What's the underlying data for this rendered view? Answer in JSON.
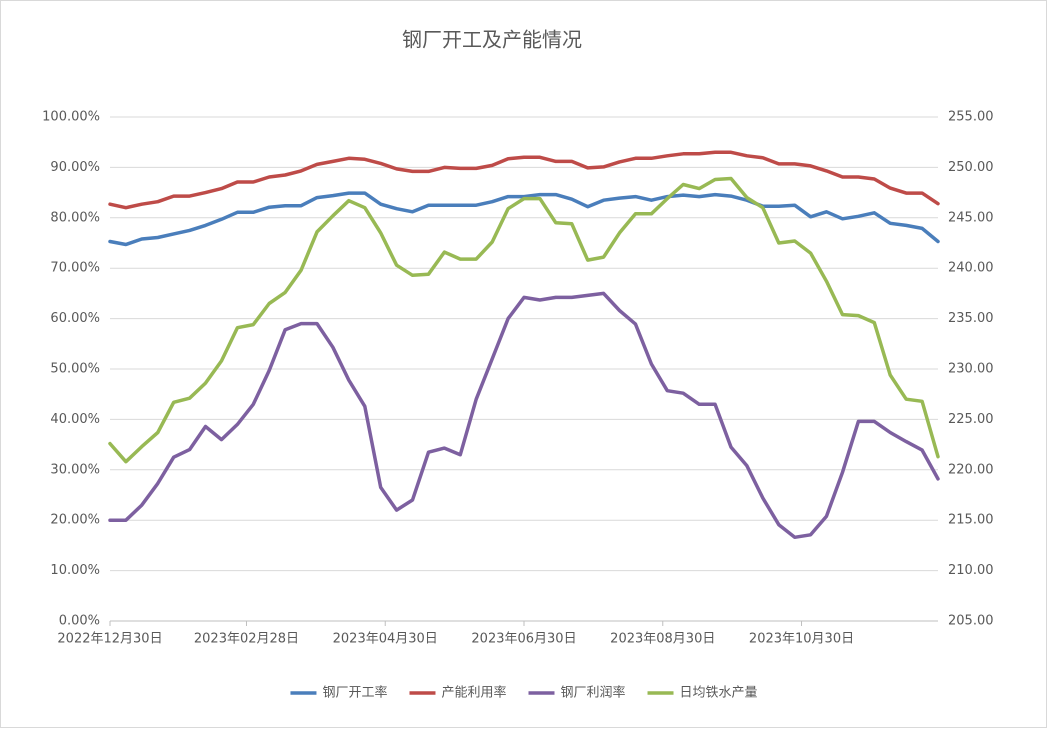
{
  "chart_data": {
    "type": "line",
    "title": "钢厂开工及产能情况",
    "x": [
      "2022-12-30",
      "2023-01-06",
      "2023-01-13",
      "2023-01-20",
      "2023-01-27",
      "2023-02-03",
      "2023-02-10",
      "2023-02-17",
      "2023-02-24",
      "2023-03-03",
      "2023-03-10",
      "2023-03-17",
      "2023-03-24",
      "2023-03-31",
      "2023-04-07",
      "2023-04-14",
      "2023-04-21",
      "2023-04-28",
      "2023-05-05",
      "2023-05-12",
      "2023-05-19",
      "2023-05-26",
      "2023-06-02",
      "2023-06-09",
      "2023-06-16",
      "2023-06-23",
      "2023-06-30",
      "2023-07-07",
      "2023-07-14",
      "2023-07-21",
      "2023-07-28",
      "2023-08-04",
      "2023-08-11",
      "2023-08-18",
      "2023-08-25",
      "2023-09-01",
      "2023-09-08",
      "2023-09-15",
      "2023-09-22",
      "2023-09-29",
      "2023-10-06",
      "2023-10-13",
      "2023-10-20",
      "2023-10-27",
      "2023-11-03",
      "2023-11-10",
      "2023-11-17",
      "2023-11-24",
      "2023-12-01",
      "2023-12-08",
      "2023-12-15",
      "2023-12-22",
      "2023-12-29"
    ],
    "xlim": [
      "2022-12-30",
      "2023-12-29"
    ],
    "xticks": [
      {
        "value": "2022-12-30",
        "label": "2022年12月30日"
      },
      {
        "value": "2023-02-28",
        "label": "2023年02月28日"
      },
      {
        "value": "2023-04-30",
        "label": "2023年04月30日"
      },
      {
        "value": "2023-06-30",
        "label": "2023年06月30日"
      },
      {
        "value": "2023-08-30",
        "label": "2023年08月30日"
      },
      {
        "value": "2023-10-30",
        "label": "2023年10月30日"
      }
    ],
    "ylim": [
      0,
      100
    ],
    "yticks": [
      {
        "value": 0,
        "label": "0.00%"
      },
      {
        "value": 10,
        "label": "10.00%"
      },
      {
        "value": 20,
        "label": "20.00%"
      },
      {
        "value": 30,
        "label": "30.00%"
      },
      {
        "value": 40,
        "label": "40.00%"
      },
      {
        "value": 50,
        "label": "50.00%"
      },
      {
        "value": 60,
        "label": "60.00%"
      },
      {
        "value": 70,
        "label": "70.00%"
      },
      {
        "value": 80,
        "label": "80.00%"
      },
      {
        "value": 90,
        "label": "90.00%"
      },
      {
        "value": 100,
        "label": "100.00%"
      }
    ],
    "y2lim": [
      205,
      255
    ],
    "y2ticks": [
      {
        "value": 205,
        "label": "205.00"
      },
      {
        "value": 210,
        "label": "210.00"
      },
      {
        "value": 215,
        "label": "215.00"
      },
      {
        "value": 220,
        "label": "220.00"
      },
      {
        "value": 225,
        "label": "225.00"
      },
      {
        "value": 230,
        "label": "230.00"
      },
      {
        "value": 235,
        "label": "235.00"
      },
      {
        "value": 240,
        "label": "240.00"
      },
      {
        "value": 245,
        "label": "245.00"
      },
      {
        "value": 250,
        "label": "250.00"
      },
      {
        "value": 255,
        "label": "255.00"
      }
    ],
    "grid": true,
    "legend": "bottom",
    "series": [
      {
        "name": "钢厂开工率",
        "color": "#4a7ebb",
        "values": [
          75.3,
          74.7,
          75.8,
          76.1,
          76.8,
          77.5,
          78.5,
          79.7,
          81.1,
          81.1,
          82.1,
          82.4,
          82.4,
          84.0,
          84.4,
          84.9,
          84.9,
          82.7,
          81.8,
          81.2,
          82.5,
          82.5,
          82.5,
          82.5,
          83.2,
          84.2,
          84.2,
          84.6,
          84.6,
          83.7,
          82.2,
          83.5,
          83.9,
          84.2,
          83.5,
          84.2,
          84.5,
          84.2,
          84.6,
          84.3,
          83.5,
          82.3,
          82.3,
          82.5,
          80.2,
          81.2,
          79.8,
          80.3,
          81.0,
          78.9,
          78.5,
          77.9,
          75.3
        ]
      },
      {
        "name": "产能利用率",
        "color": "#be4b48",
        "values": [
          82.7,
          82.0,
          82.7,
          83.2,
          84.3,
          84.3,
          85.0,
          85.8,
          87.1,
          87.1,
          88.1,
          88.5,
          89.3,
          90.6,
          91.2,
          91.8,
          91.6,
          90.8,
          89.7,
          89.2,
          89.2,
          90.0,
          89.8,
          89.8,
          90.4,
          91.7,
          92.0,
          92.0,
          91.2,
          91.2,
          89.9,
          90.1,
          91.1,
          91.8,
          91.8,
          92.3,
          92.7,
          92.7,
          93.0,
          93.0,
          92.3,
          91.9,
          90.7,
          90.7,
          90.3,
          89.3,
          88.1,
          88.1,
          87.7,
          85.9,
          84.9,
          84.9,
          82.8
        ]
      },
      {
        "name": "钢厂利润率",
        "color": "#7d60a0",
        "values": [
          20.0,
          20.0,
          23.0,
          27.3,
          32.5,
          34.0,
          38.6,
          36.0,
          39.0,
          43.0,
          49.7,
          57.8,
          59.0,
          59.0,
          54.3,
          47.8,
          42.6,
          26.5,
          22.0,
          24.0,
          33.5,
          34.3,
          33.0,
          44.0,
          52.0,
          60.0,
          64.2,
          63.7,
          64.2,
          64.2,
          64.6,
          65.0,
          61.6,
          58.9,
          51.0,
          45.7,
          45.2,
          43.0,
          43.0,
          34.5,
          30.8,
          24.4,
          19.1,
          16.6,
          17.1,
          20.8,
          29.5,
          39.6,
          39.6,
          37.4,
          35.6,
          33.9,
          28.2
        ]
      },
      {
        "name": "日均铁水产量",
        "color": "#98b954",
        "axis": "y2",
        "values": [
          222.6,
          220.8,
          222.3,
          223.7,
          226.7,
          227.1,
          228.6,
          230.8,
          234.1,
          234.4,
          236.5,
          237.6,
          239.8,
          243.6,
          245.2,
          246.7,
          246.0,
          243.5,
          240.3,
          239.3,
          239.4,
          241.6,
          240.9,
          240.9,
          242.6,
          245.9,
          246.9,
          246.9,
          244.5,
          244.4,
          240.8,
          241.1,
          243.5,
          245.4,
          245.4,
          246.9,
          248.3,
          247.9,
          248.8,
          248.9,
          247.0,
          246.0,
          242.5,
          242.7,
          241.5,
          238.7,
          235.4,
          235.3,
          234.6,
          229.4,
          227.0,
          226.8,
          221.3
        ]
      }
    ]
  }
}
